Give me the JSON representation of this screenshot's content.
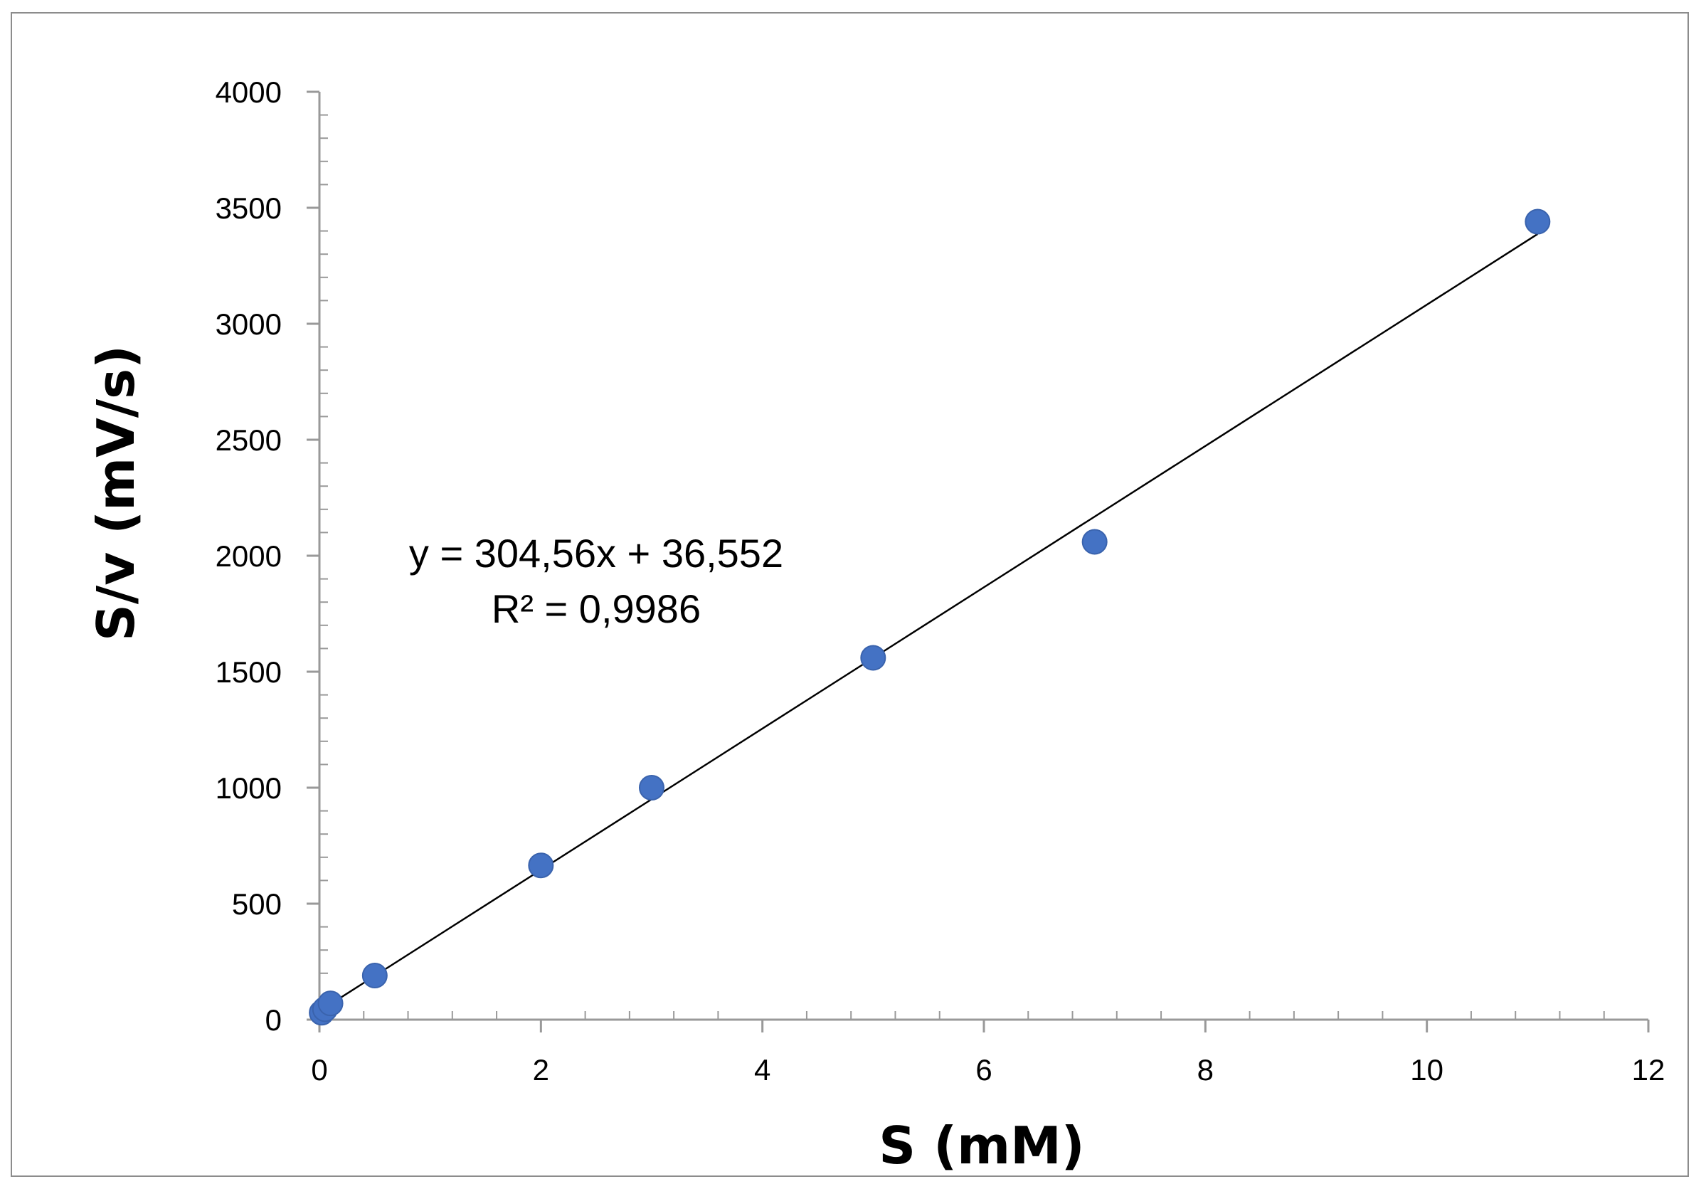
{
  "chart_data": {
    "type": "scatter",
    "title": "",
    "xlabel": "S (mM)",
    "ylabel": "S/v (mV/s)",
    "xlim": [
      0,
      12
    ],
    "ylim": [
      0,
      4000
    ],
    "x_major_step": 2,
    "x_minor_step": 0.4,
    "y_major_step": 500,
    "y_minor_step": 100,
    "x_tick_labels": [
      "0",
      "2",
      "4",
      "6",
      "8",
      "10",
      "12"
    ],
    "y_tick_labels": [
      "0",
      "500",
      "1000",
      "1500",
      "2000",
      "2500",
      "3000",
      "3500",
      "4000"
    ],
    "series": [
      {
        "name": "S/v",
        "color": "#4472C4",
        "points": [
          {
            "x": 0.02,
            "y": 30
          },
          {
            "x": 0.05,
            "y": 45
          },
          {
            "x": 0.1,
            "y": 70
          },
          {
            "x": 0.5,
            "y": 190
          },
          {
            "x": 2,
            "y": 665
          },
          {
            "x": 3,
            "y": 1000
          },
          {
            "x": 5,
            "y": 1560
          },
          {
            "x": 7,
            "y": 2060
          },
          {
            "x": 11,
            "y": 3440
          }
        ]
      }
    ],
    "trendline": {
      "type": "linear",
      "slope": 304.56,
      "intercept": 36.552,
      "x_start": 0.02,
      "x_end": 11,
      "color": "#000000"
    },
    "equation_text": "y = 304,56x + 36,552",
    "r2_text": "R² = 0,9986"
  }
}
